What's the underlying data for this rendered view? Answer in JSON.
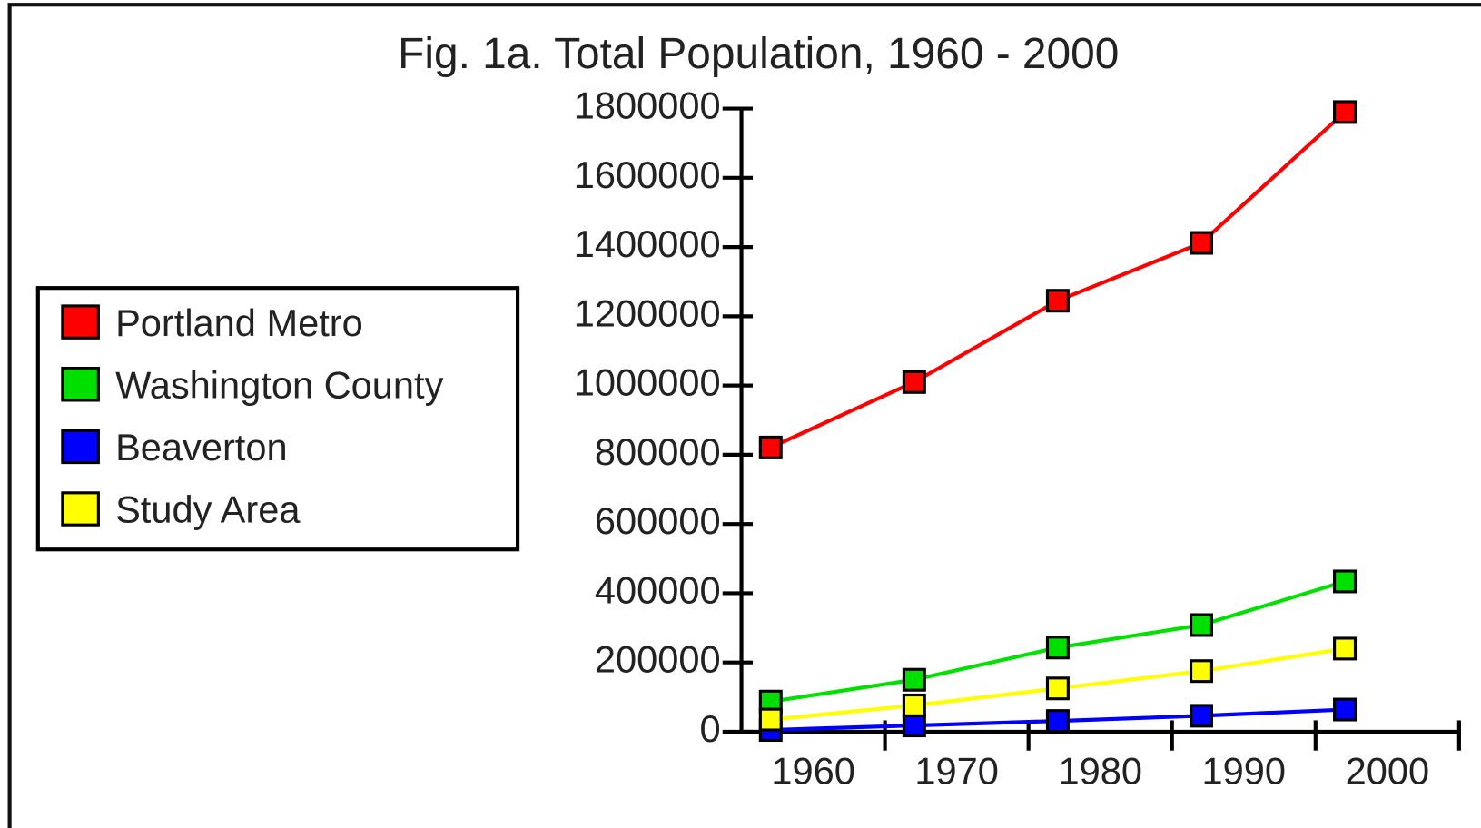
{
  "chart_data": {
    "type": "line",
    "title": "Fig. 1a. Total Population, 1960 - 2000",
    "categories": [
      "1960",
      "1970",
      "1980",
      "1990",
      "2000"
    ],
    "series": [
      {
        "name": "Portland Metro",
        "color": "#ff0000",
        "values": [
          821000,
          1010000,
          1245000,
          1412000,
          1790000
        ]
      },
      {
        "name": "Washington County",
        "color": "#00e000",
        "values": [
          87000,
          150000,
          243000,
          308000,
          434000
        ]
      },
      {
        "name": "Beaverton",
        "color": "#0000ff",
        "values": [
          5000,
          18000,
          31000,
          46000,
          64000
        ]
      },
      {
        "name": "Study Area",
        "color": "#ffff00",
        "values": [
          35000,
          76000,
          125000,
          175000,
          240000
        ]
      }
    ],
    "ylim": [
      0,
      1800000
    ],
    "yticks": [
      0,
      200000,
      400000,
      600000,
      800000,
      1000000,
      1200000,
      1400000,
      1600000,
      1800000
    ],
    "legend": "left",
    "grid": false
  }
}
